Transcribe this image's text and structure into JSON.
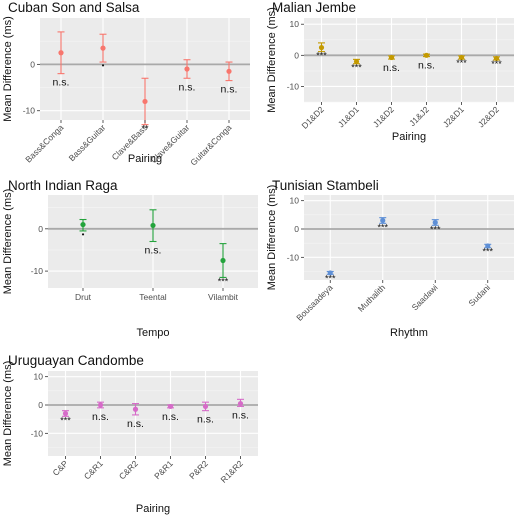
{
  "chart_data": [
    {
      "type": "scatter",
      "title": "Cuban Son and Salsa",
      "xlabel": "Pairing",
      "ylabel": "Mean Difference (ms)",
      "ylim": [
        -12,
        10
      ],
      "yticks": [
        -10,
        0
      ],
      "grid": true,
      "color": "#F8766D",
      "categories": [
        "Bass&Conga",
        "Bass&Guitar",
        "Clave&Bass",
        "Clave&Guitar",
        "Guitar&Conga"
      ],
      "values": [
        2.5,
        3.5,
        -8,
        -1,
        -1.5
      ],
      "lower": [
        -2,
        0.5,
        -13,
        -3,
        -3.5
      ],
      "upper": [
        7,
        6.5,
        -3,
        1,
        0.5
      ],
      "annotations": [
        "n.s.",
        "•",
        "**",
        "n.s.",
        "n.s."
      ]
    },
    {
      "type": "scatter",
      "title": "Malian Jembe",
      "xlabel": "Pairing",
      "ylabel": "Mean Difference (ms)",
      "ylim": [
        -15,
        12
      ],
      "yticks": [
        -10,
        0,
        10
      ],
      "grid": true,
      "color": "#C49A00",
      "categories": [
        "D1&D2",
        "J1&D1",
        "J1&D2",
        "J1&J2",
        "J2&D1",
        "J2&D2"
      ],
      "values": [
        2.5,
        -2,
        -0.7,
        0,
        -0.7,
        -1
      ],
      "lower": [
        1.2,
        -2.7,
        -1.2,
        -0.4,
        -1.2,
        -1.5
      ],
      "upper": [
        4,
        -1.3,
        -0.2,
        0.4,
        -0.2,
        -0.5
      ],
      "annotations": [
        "***",
        "***",
        "n.s.",
        "n.s.",
        "***",
        "***"
      ]
    },
    {
      "type": "scatter",
      "title": "North Indian Raga",
      "xlabel": "Tempo",
      "ylabel": "Mean Difference (ms)",
      "ylim": [
        -14,
        8
      ],
      "yticks": [
        -10,
        0
      ],
      "grid": true,
      "color": "#24A33C",
      "categories": [
        "Drut",
        "Teental",
        "Vilambit"
      ],
      "values": [
        1,
        0.8,
        -7.5
      ],
      "lower": [
        -0.5,
        -3,
        -11.5
      ],
      "upper": [
        2.2,
        4.5,
        -3.5
      ],
      "annotations": [
        "•",
        "n.s.",
        "***"
      ]
    },
    {
      "type": "scatter",
      "title": "Tunisian Stambeli",
      "xlabel": "Rhythm",
      "ylabel": "Mean Difference (ms)",
      "ylim": [
        -18,
        12
      ],
      "yticks": [
        -10,
        0,
        10
      ],
      "grid": true,
      "color": "#5E8FD6",
      "categories": [
        "Bousaadeya",
        "Muthalith",
        "Saadawi",
        "Sudani"
      ],
      "values": [
        -15.5,
        3,
        2.3,
        -6
      ],
      "lower": [
        -16,
        2,
        1.3,
        -6.6
      ],
      "upper": [
        -15,
        4,
        3.3,
        -5.4
      ],
      "annotations": [
        "***",
        "***",
        "***",
        "***"
      ]
    },
    {
      "type": "scatter",
      "title": "Uruguayan Candombe",
      "xlabel": "Pairing",
      "ylabel": "Mean Difference (ms)",
      "ylim": [
        -18,
        12
      ],
      "yticks": [
        -10,
        0,
        10
      ],
      "grid": true,
      "color": "#D66BC8",
      "categories": [
        "C&P",
        "C&R1",
        "C&R2",
        "P&R1",
        "P&R2",
        "R1&R2"
      ],
      "values": [
        -3,
        0,
        -1.5,
        -0.5,
        -0.5,
        0.5
      ],
      "lower": [
        -4,
        -1,
        -3.5,
        -1,
        -2,
        -0.5
      ],
      "upper": [
        -2,
        1,
        0.5,
        0,
        1,
        2
      ],
      "annotations": [
        "***",
        "n.s.",
        "n.s.",
        "n.s.",
        "n.s.",
        "n.s."
      ]
    }
  ]
}
